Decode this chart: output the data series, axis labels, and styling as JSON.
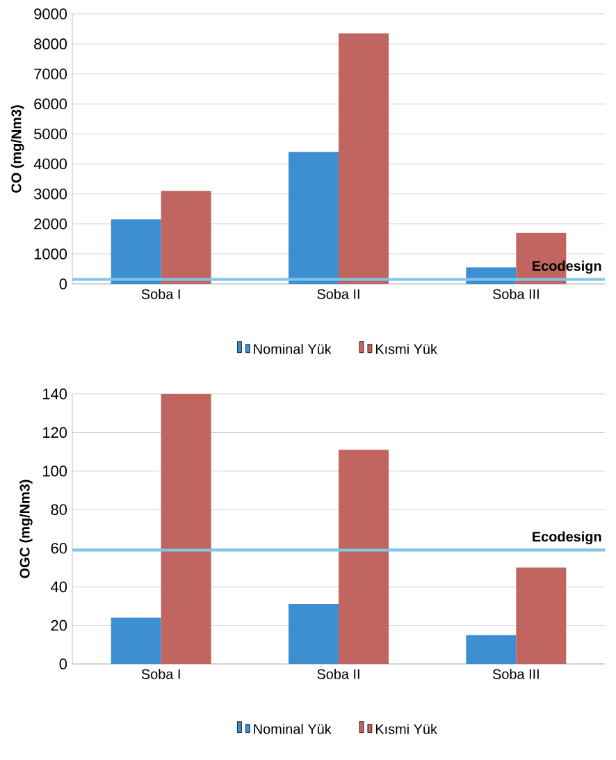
{
  "chart_data": [
    {
      "type": "bar",
      "ylabel": "CO (mg/Nm3)",
      "categories": [
        "Soba I",
        "Soba II",
        "Soba III"
      ],
      "series": [
        {
          "name": "Nominal Yük",
          "color": "#3d8fd1",
          "values": [
            2150,
            4400,
            550
          ]
        },
        {
          "name": "Kısmi Yük",
          "color": "#c0655f",
          "values": [
            3100,
            8350,
            1700
          ]
        }
      ],
      "ylim": [
        0,
        9000
      ],
      "yticks": [
        0,
        1000,
        2000,
        3000,
        4000,
        5000,
        6000,
        7000,
        8000,
        9000
      ],
      "grid": "y",
      "legend": "bottom",
      "ref_lines": [
        {
          "axis": "y",
          "value": 150,
          "label": "Ecodesign",
          "color": "#7ec8e8"
        }
      ]
    },
    {
      "type": "bar",
      "ylabel": "OGC (mg/Nm3)",
      "categories": [
        "Soba I",
        "Soba II",
        "Soba III"
      ],
      "series": [
        {
          "name": "Nominal Yük",
          "color": "#3d8fd1",
          "values": [
            24,
            31,
            15
          ]
        },
        {
          "name": "Kısmi Yük",
          "color": "#c0655f",
          "values": [
            140,
            111,
            50
          ]
        }
      ],
      "ylim": [
        0,
        140
      ],
      "yticks": [
        0,
        20,
        40,
        60,
        80,
        100,
        120,
        140
      ],
      "grid": "y",
      "legend": "bottom",
      "ref_lines": [
        {
          "axis": "y",
          "value": 59,
          "label": "Ecodesign",
          "color": "#7ec8e8"
        }
      ]
    }
  ]
}
